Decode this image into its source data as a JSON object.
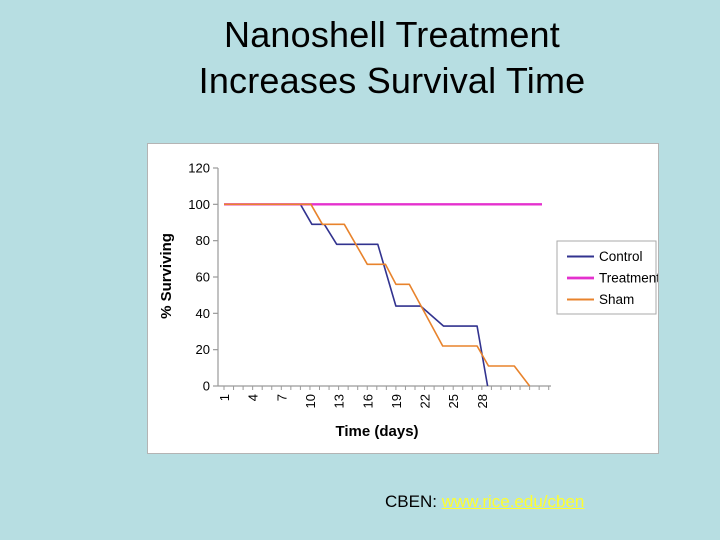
{
  "slide": {
    "background_color": "#B7DEE2",
    "title_line1": "Nanoshell Treatment",
    "title_line2": "Increases Survival Time",
    "footer": {
      "label": "CBEN:",
      "link_text": "www.rice.edu/cben",
      "link_color": "#FFFF2E"
    }
  },
  "chart_data": {
    "type": "line",
    "title": "",
    "xlabel": "Time (days)",
    "ylabel": "% Surviving",
    "x_ticks": [
      1,
      4,
      7,
      10,
      13,
      16,
      19,
      22,
      25,
      28
    ],
    "x_minor_tick_step": 1,
    "x_axis_days": [
      1,
      35
    ],
    "ylim": [
      0,
      120
    ],
    "y_ticks": [
      0,
      20,
      40,
      60,
      80,
      100,
      120
    ],
    "grid": false,
    "legend_position": "right-inside",
    "axis_color": "#9a9a9a",
    "tick_label_color": "#000000",
    "series": [
      {
        "name": "Control",
        "color": "#32338F",
        "width": 1.6,
        "points": [
          [
            1,
            100
          ],
          [
            9,
            100
          ],
          [
            10.2,
            89
          ],
          [
            11.5,
            89
          ],
          [
            12.8,
            78
          ],
          [
            17.1,
            78
          ],
          [
            19,
            44
          ],
          [
            21.6,
            44
          ],
          [
            24,
            33
          ],
          [
            27.5,
            33
          ],
          [
            28.6,
            0
          ]
        ]
      },
      {
        "name": "Treatment",
        "color": "#E431CE",
        "width": 2.4,
        "points": [
          [
            1,
            100
          ],
          [
            34.3,
            100
          ]
        ]
      },
      {
        "name": "Sham",
        "color": "#E8832C",
        "width": 1.6,
        "points": [
          [
            1,
            100
          ],
          [
            10.1,
            100
          ],
          [
            11.3,
            89
          ],
          [
            13.6,
            89
          ],
          [
            16,
            67
          ],
          [
            17.9,
            67
          ],
          [
            19,
            56
          ],
          [
            20.4,
            56
          ],
          [
            23.9,
            22
          ],
          [
            27.5,
            22
          ],
          [
            28.7,
            11
          ],
          [
            31.4,
            11
          ],
          [
            33,
            0
          ]
        ]
      }
    ]
  }
}
